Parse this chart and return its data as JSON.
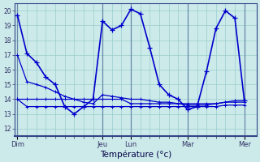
{
  "background_color": "#cceaea",
  "grid_color": "#99cccc",
  "line_color_main": "#0000cc",
  "line_color_flat": "#0000cc",
  "title": "Température (°c)",
  "x_tick_labels": [
    "Dim",
    "Jeu",
    "Lun",
    "Mar",
    "Mer"
  ],
  "x_tick_positions": [
    0,
    9,
    12,
    18,
    24
  ],
  "xlim": [
    -0.3,
    25.3
  ],
  "ylim": [
    11.5,
    20.5
  ],
  "yticks": [
    12,
    13,
    14,
    15,
    16,
    17,
    18,
    19,
    20
  ],
  "minor_xticks": [
    0,
    1,
    2,
    3,
    4,
    5,
    6,
    7,
    8,
    9,
    10,
    11,
    12,
    13,
    14,
    15,
    16,
    17,
    18,
    19,
    20,
    21,
    22,
    23,
    24
  ],
  "series1_x": [
    0,
    1,
    2,
    3,
    4,
    5,
    6,
    7,
    8,
    9,
    10,
    11,
    12,
    13,
    14,
    15,
    16,
    17,
    18,
    19,
    20,
    21,
    22,
    23,
    24
  ],
  "series1_y": [
    19.7,
    17.1,
    16.5,
    15.5,
    15.0,
    13.5,
    13.0,
    13.5,
    14.0,
    19.3,
    18.7,
    19.0,
    20.1,
    19.8,
    17.5,
    15.0,
    14.3,
    14.0,
    13.3,
    13.5,
    15.9,
    18.8,
    20.0,
    19.5,
    13.9
  ],
  "series2_x": [
    0,
    1,
    2,
    3,
    4,
    5,
    6,
    7,
    8,
    9,
    10,
    11,
    12,
    13,
    14,
    15,
    16,
    17,
    18,
    19,
    20,
    21,
    22,
    23,
    24
  ],
  "series2_y": [
    14.0,
    14.0,
    14.0,
    14.0,
    14.0,
    14.0,
    14.0,
    14.0,
    14.0,
    14.0,
    14.0,
    14.0,
    13.7,
    13.7,
    13.7,
    13.7,
    13.7,
    13.7,
    13.7,
    13.7,
    13.7,
    13.7,
    13.8,
    13.8,
    13.8
  ],
  "series3_x": [
    0,
    1,
    2,
    3,
    4,
    5,
    6,
    7,
    8,
    9,
    10,
    11,
    12,
    13,
    14,
    15,
    16,
    17,
    18,
    19,
    20,
    21,
    22,
    23,
    24
  ],
  "series3_y": [
    14.0,
    13.5,
    13.5,
    13.5,
    13.5,
    13.5,
    13.5,
    13.5,
    13.5,
    13.5,
    13.5,
    13.5,
    13.5,
    13.5,
    13.5,
    13.5,
    13.5,
    13.5,
    13.5,
    13.5,
    13.5,
    13.5,
    13.6,
    13.6,
    13.6
  ],
  "series4_x": [
    0,
    1,
    2,
    3,
    4,
    5,
    6,
    7,
    8,
    9,
    10,
    11,
    12,
    13,
    14,
    15,
    16,
    17,
    18,
    19,
    20,
    21,
    22,
    23,
    24
  ],
  "series4_y": [
    17.0,
    15.2,
    15.0,
    14.8,
    14.5,
    14.2,
    14.0,
    13.8,
    13.7,
    14.3,
    14.2,
    14.1,
    14.0,
    14.0,
    13.9,
    13.8,
    13.8,
    13.7,
    13.6,
    13.6,
    13.6,
    13.7,
    13.8,
    13.9,
    13.9
  ]
}
